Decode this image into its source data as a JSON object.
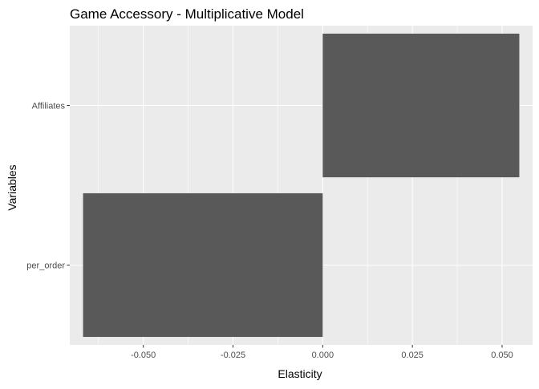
{
  "chart_data": {
    "type": "bar",
    "orientation": "horizontal",
    "title": "Game Accessory - Multiplicative Model",
    "xlabel": "Elasticity",
    "ylabel": "Variables",
    "categories": [
      "Affiliates",
      "per_order"
    ],
    "values": [
      0.0548,
      -0.0668
    ],
    "xlim": [
      -0.0705,
      0.0585
    ],
    "x_ticks": [
      -0.05,
      -0.025,
      0.0,
      0.025,
      0.05
    ],
    "x_tick_labels": [
      "-0.050",
      "-0.025",
      "0.000",
      "0.025",
      "0.050"
    ],
    "grid": true,
    "legend": "none",
    "colors": {
      "panel_background": "#ebebeb",
      "grid_major": "#ffffff",
      "bar_fill": "#595959",
      "axis_text": "#4d4d4d",
      "title_text": "#000000"
    }
  }
}
